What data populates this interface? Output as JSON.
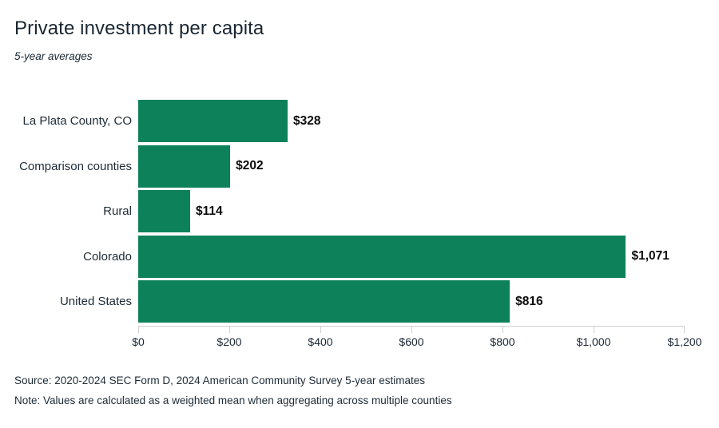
{
  "header": {
    "title": "Private investment per capita",
    "subtitle": "5-year averages"
  },
  "footer": {
    "source": "Source: 2020-2024 SEC Form D, 2024 American Community Survey 5-year estimates",
    "note": "Note: Values are calculated as a weighted mean when aggregating across multiple counties"
  },
  "colors": {
    "bar": "#0d815a",
    "axis": "#cfcfcf",
    "text": "#1a2732",
    "value_label": "#0b0b0b"
  },
  "chart_data": {
    "type": "bar",
    "orientation": "horizontal",
    "title": "Private investment per capita",
    "subtitle": "5-year averages",
    "categories": [
      "La Plata County, CO",
      "Comparison counties",
      "Rural",
      "Colorado",
      "United States"
    ],
    "values": [
      328,
      202,
      114,
      1071,
      816
    ],
    "value_labels": [
      "$328",
      "$202",
      "$114",
      "$1,071",
      "$816"
    ],
    "xlabel": "",
    "ylabel": "",
    "xlim": [
      0,
      1200
    ],
    "x_tick_values": [
      0,
      200,
      400,
      600,
      800,
      1000,
      1200
    ],
    "x_tick_labels": [
      "$0",
      "$200",
      "$400",
      "$600",
      "$800",
      "$1,000",
      "$1,200"
    ],
    "grid": false,
    "legend": false
  }
}
